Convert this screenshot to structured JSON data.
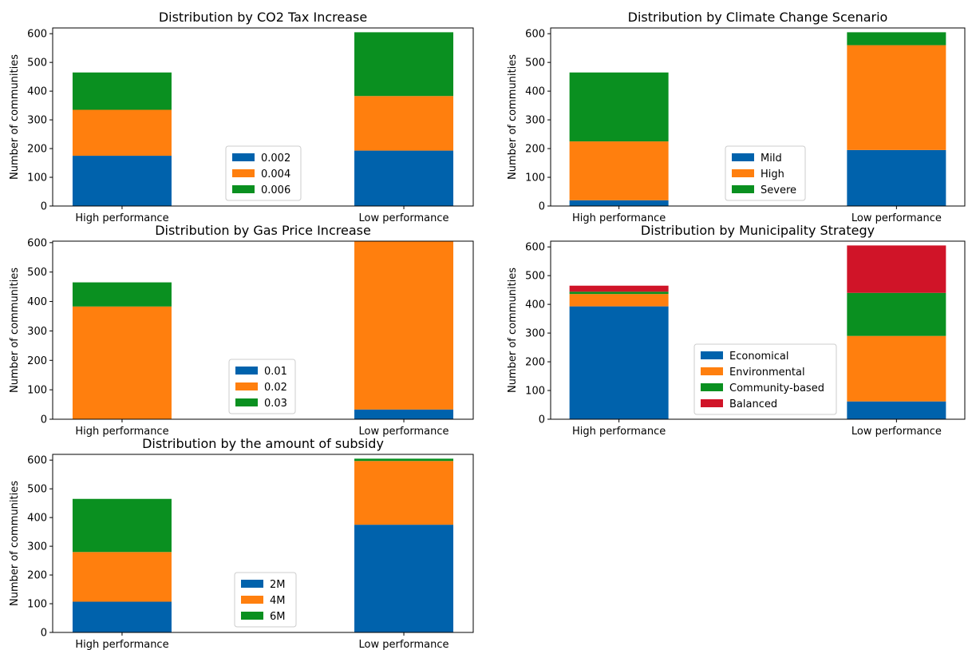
{
  "chart_data": [
    {
      "type": "bar",
      "stacked": true,
      "title": "Distribution by CO2 Tax Increase",
      "ylabel": "Number of communities",
      "xlabel": "",
      "categories": [
        "High performance",
        "Low performance"
      ],
      "ylim": [
        0,
        620
      ],
      "yticks": [
        0,
        100,
        200,
        300,
        400,
        500,
        600
      ],
      "legend_position": "center",
      "series": [
        {
          "name": "0.002",
          "color": "#0062ac",
          "values": [
            175,
            193
          ]
        },
        {
          "name": "0.004",
          "color": "#ff7f0e",
          "values": [
            160,
            190
          ]
        },
        {
          "name": "0.006",
          "color": "#0a9020",
          "values": [
            130,
            222
          ]
        }
      ]
    },
    {
      "type": "bar",
      "stacked": true,
      "title": "Distribution by Climate Change Scenario",
      "ylabel": "Number of communities",
      "xlabel": "",
      "categories": [
        "High performance",
        "Low performance"
      ],
      "ylim": [
        0,
        620
      ],
      "yticks": [
        0,
        100,
        200,
        300,
        400,
        500,
        600
      ],
      "legend_position": "center",
      "series": [
        {
          "name": "Mild",
          "color": "#0062ac",
          "values": [
            20,
            195
          ]
        },
        {
          "name": "High",
          "color": "#ff7f0e",
          "values": [
            205,
            365
          ]
        },
        {
          "name": "Severe",
          "color": "#0a9020",
          "values": [
            240,
            45
          ]
        }
      ]
    },
    {
      "type": "bar",
      "stacked": true,
      "title": "Distribution by Gas Price Increase",
      "ylabel": "Number of communities",
      "xlabel": "",
      "categories": [
        "High performance",
        "Low performance"
      ],
      "ylim": [
        0,
        605
      ],
      "yticks": [
        0,
        100,
        200,
        300,
        400,
        500,
        600
      ],
      "legend_position": "center",
      "series": [
        {
          "name": "0.01",
          "color": "#0062ac",
          "values": [
            0,
            33
          ]
        },
        {
          "name": "0.02",
          "color": "#ff7f0e",
          "values": [
            383,
            572
          ]
        },
        {
          "name": "0.03",
          "color": "#0a9020",
          "values": [
            82,
            0
          ]
        }
      ]
    },
    {
      "type": "bar",
      "stacked": true,
      "title": "Distribution by Municipality Strategy",
      "ylabel": "Number of communities",
      "xlabel": "",
      "categories": [
        "High performance",
        "Low performance"
      ],
      "ylim": [
        0,
        620
      ],
      "yticks": [
        0,
        100,
        200,
        300,
        400,
        500,
        600
      ],
      "legend_position": "center",
      "series": [
        {
          "name": "Economical",
          "color": "#0062ac",
          "values": [
            393,
            62
          ]
        },
        {
          "name": "Environmental",
          "color": "#ff7f0e",
          "values": [
            43,
            228
          ]
        },
        {
          "name": "Community-based",
          "color": "#0a9020",
          "values": [
            8,
            150
          ]
        },
        {
          "name": "Balanced",
          "color": "#d01428",
          "values": [
            21,
            165
          ]
        }
      ]
    },
    {
      "type": "bar",
      "stacked": true,
      "title": "Distribution by the amount of subsidy",
      "ylabel": "Number of communities",
      "xlabel": "",
      "categories": [
        "High performance",
        "Low performance"
      ],
      "ylim": [
        0,
        620
      ],
      "yticks": [
        0,
        100,
        200,
        300,
        400,
        500,
        600
      ],
      "legend_position": "center",
      "series": [
        {
          "name": "2M",
          "color": "#0062ac",
          "values": [
            107,
            375
          ]
        },
        {
          "name": "4M",
          "color": "#ff7f0e",
          "values": [
            173,
            222
          ]
        },
        {
          "name": "6M",
          "color": "#0a9020",
          "values": [
            185,
            8
          ]
        }
      ]
    }
  ]
}
